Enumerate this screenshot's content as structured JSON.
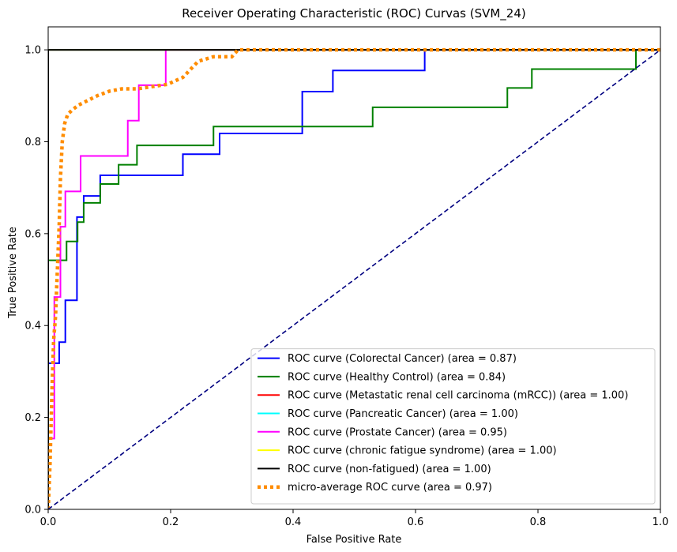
{
  "chart_data": {
    "type": "line",
    "title": "Receiver Operating Characteristic (ROC) Curvas (SVM_24)",
    "xlabel": "False Positive Rate",
    "ylabel": "True Positive Rate",
    "xlim": [
      0,
      1.0
    ],
    "ylim": [
      0,
      1.05
    ],
    "xticks": [
      0.0,
      0.2,
      0.4,
      0.6,
      0.8,
      1.0
    ],
    "xtick_labels": [
      "0.0",
      "0.2",
      "0.4",
      "0.6",
      "0.8",
      "1.0"
    ],
    "yticks": [
      0.0,
      0.2,
      0.4,
      0.6,
      0.8,
      1.0
    ],
    "ytick_labels": [
      "0.0",
      "0.2",
      "0.4",
      "0.6",
      "0.8",
      "1.0"
    ],
    "grid": false,
    "legend_position": "lower-right",
    "series": [
      {
        "name": "ROC curve (Colorectal Cancer) (area = 0.87)",
        "color": "#0000ff",
        "style": "solid",
        "x": [
          0,
          0,
          0.018,
          0.018,
          0.028,
          0.028,
          0.047,
          0.047,
          0.058,
          0.058,
          0.085,
          0.085,
          0.22,
          0.22,
          0.28,
          0.28,
          0.415,
          0.415,
          0.465,
          0.465,
          0.615,
          0.615,
          1.0
        ],
        "y": [
          0,
          0.318,
          0.318,
          0.364,
          0.364,
          0.455,
          0.455,
          0.636,
          0.636,
          0.682,
          0.682,
          0.727,
          0.727,
          0.773,
          0.773,
          0.818,
          0.818,
          0.909,
          0.909,
          0.955,
          0.955,
          1.0,
          1.0
        ]
      },
      {
        "name": "ROC curve (Healthy Control) (area = 0.84)",
        "color": "#008000",
        "style": "solid",
        "x": [
          0,
          0,
          0.03,
          0.03,
          0.048,
          0.048,
          0.058,
          0.058,
          0.085,
          0.085,
          0.115,
          0.115,
          0.145,
          0.145,
          0.27,
          0.27,
          0.53,
          0.53,
          0.75,
          0.75,
          0.79,
          0.79,
          0.96,
          0.96,
          1.0
        ],
        "y": [
          0,
          0.542,
          0.542,
          0.583,
          0.583,
          0.625,
          0.625,
          0.667,
          0.667,
          0.708,
          0.708,
          0.75,
          0.75,
          0.792,
          0.792,
          0.833,
          0.833,
          0.875,
          0.875,
          0.917,
          0.917,
          0.958,
          0.958,
          1.0,
          1.0
        ]
      },
      {
        "name": "ROC curve (Metastatic renal cell carcinoma (mRCC)) (area = 1.00)",
        "color": "#ff0000",
        "style": "solid",
        "x": [
          0,
          0,
          1.0
        ],
        "y": [
          0,
          1.0,
          1.0
        ]
      },
      {
        "name": "ROC curve (Pancreatic Cancer) (area = 1.00)",
        "color": "#00ffff",
        "style": "solid",
        "x": [
          0,
          0,
          1.0
        ],
        "y": [
          0,
          1.0,
          1.0
        ]
      },
      {
        "name": "ROC curve (Prostate Cancer) (area = 0.95)",
        "color": "#ff00ff",
        "style": "solid",
        "x": [
          0,
          0,
          0.01,
          0.01,
          0.02,
          0.02,
          0.028,
          0.028,
          0.053,
          0.053,
          0.13,
          0.13,
          0.148,
          0.148,
          0.192,
          0.192,
          1.0
        ],
        "y": [
          0,
          0.154,
          0.154,
          0.462,
          0.462,
          0.615,
          0.615,
          0.692,
          0.692,
          0.769,
          0.769,
          0.846,
          0.846,
          0.923,
          0.923,
          1.0,
          1.0
        ]
      },
      {
        "name": "ROC curve (chronic fatigue syndrome) (area = 1.00)",
        "color": "#ffff00",
        "style": "solid",
        "x": [
          0,
          0,
          1.0
        ],
        "y": [
          0,
          1.0,
          1.0
        ]
      },
      {
        "name": "ROC curve (non-fatigued) (area = 1.00)",
        "color": "#000000",
        "style": "solid",
        "x": [
          0,
          0,
          1.0
        ],
        "y": [
          0,
          1.0,
          1.0
        ]
      },
      {
        "name": "micro-average ROC curve (area = 0.97)",
        "color": "#ff8c00",
        "style": "dotted",
        "x": [
          0,
          0.003,
          0.006,
          0.009,
          0.012,
          0.015,
          0.018,
          0.02,
          0.023,
          0.027,
          0.032,
          0.04,
          0.05,
          0.065,
          0.08,
          0.1,
          0.12,
          0.145,
          0.17,
          0.195,
          0.22,
          0.245,
          0.27,
          0.3,
          0.31,
          0.35,
          0.5,
          0.7,
          0.9,
          1.0
        ],
        "y": [
          0,
          0.1,
          0.25,
          0.37,
          0.42,
          0.52,
          0.62,
          0.72,
          0.8,
          0.84,
          0.86,
          0.87,
          0.88,
          0.89,
          0.9,
          0.91,
          0.915,
          0.915,
          0.92,
          0.925,
          0.94,
          0.975,
          0.985,
          0.985,
          1.0,
          1.0,
          1.0,
          1.0,
          1.0,
          1.0
        ]
      },
      {
        "name": "",
        "color": "#000080",
        "style": "dashed",
        "x": [
          0,
          1.0
        ],
        "y": [
          0,
          1.0
        ]
      }
    ]
  }
}
